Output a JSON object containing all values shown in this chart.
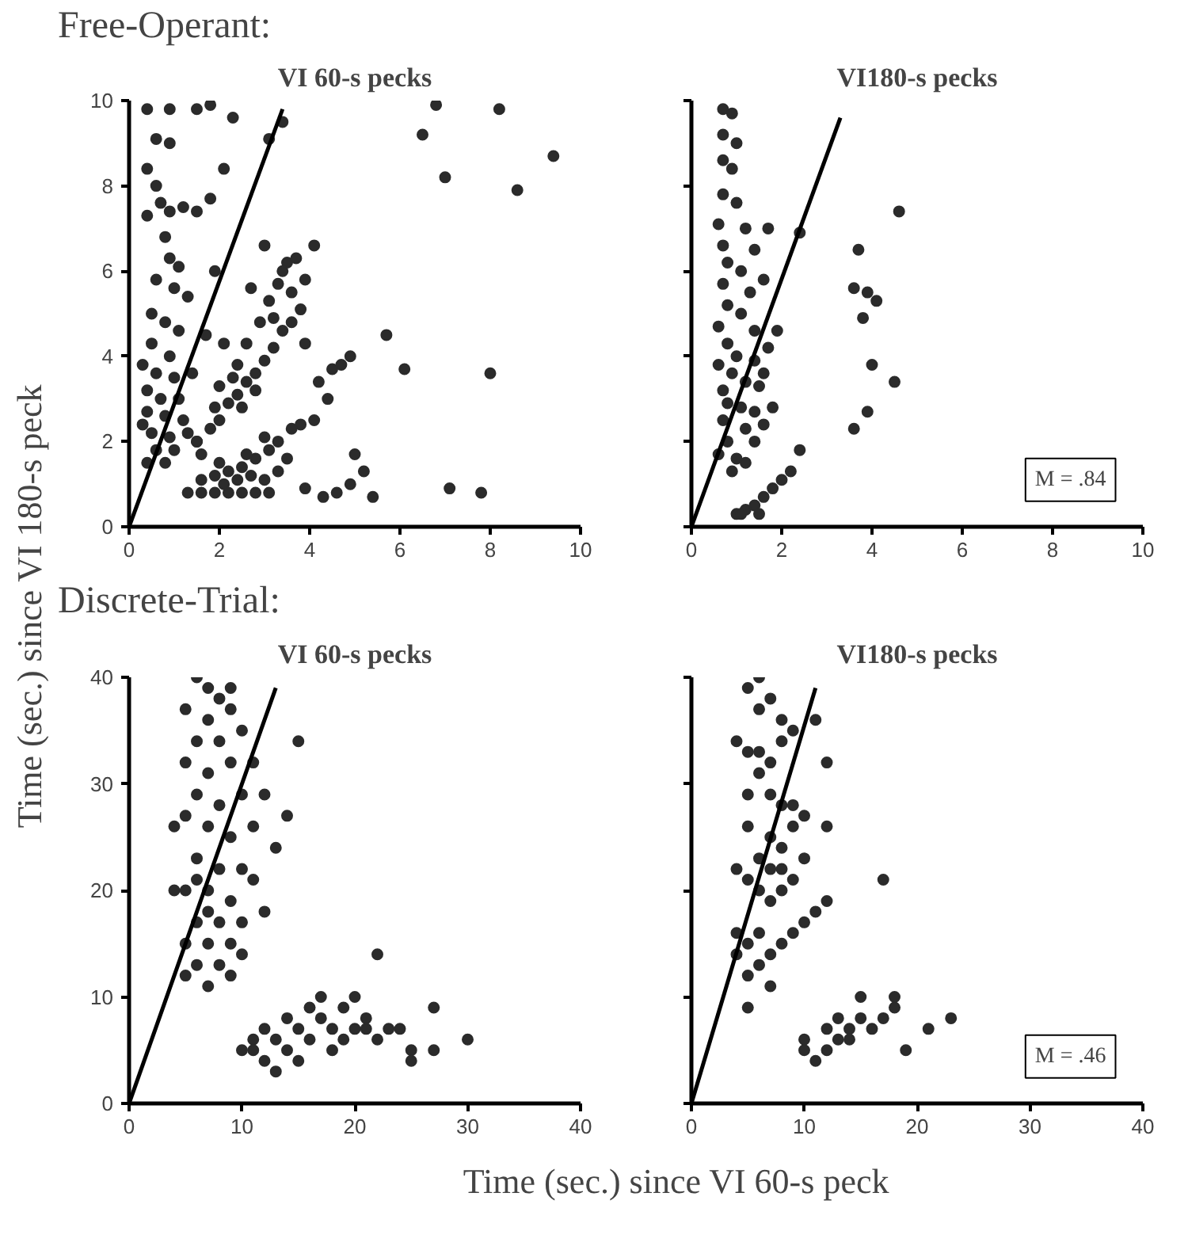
{
  "chart_data": [
    {
      "type": "scatter",
      "title": "VI 60-s pecks",
      "annotations": [
        "Free-Operant:"
      ],
      "ylabel": "Time (sec.) since VI 180-s peck",
      "xlim": [
        0,
        10
      ],
      "ylim": [
        0,
        10
      ],
      "xticks": [
        0,
        2,
        4,
        6,
        8,
        10
      ],
      "yticks": [
        0,
        2,
        4,
        6,
        8,
        10
      ],
      "marker": "circle",
      "series": [
        {
          "color": "#2b2b2b",
          "x": [
            0.4,
            0.9,
            1.5,
            1.8,
            0.6,
            0.9,
            0.4,
            0.6,
            0.7,
            0.4,
            0.9,
            1.2,
            1.5,
            1.8,
            0.8,
            0.9,
            1.1,
            0.6,
            1.0,
            1.3,
            0.5,
            0.8,
            1.1,
            0.5,
            0.9,
            0.3,
            0.6,
            1.0,
            0.4,
            0.7,
            1.1,
            0.4,
            0.8,
            1.2,
            0.5,
            0.9,
            1.3,
            0.6,
            1.0,
            0.4,
            0.8,
            1.5,
            1.6,
            0.3,
            1.4,
            1.7,
            1.9,
            2.1,
            2.3,
            3.4,
            3.1,
            1.5,
            1.8,
            2.0,
            2.2,
            2.4,
            2.6,
            2.8,
            3.0,
            3.2,
            3.4,
            3.6,
            3.8,
            2.4,
            2.6,
            2.9,
            3.1,
            3.3,
            3.5,
            3.0,
            3.4,
            2.1,
            2.0,
            2.7,
            3.9,
            4.1,
            3.7,
            3.2,
            3.6,
            2.3,
            1.9,
            2.5,
            2.8,
            3.9,
            1.3,
            1.6,
            1.9,
            2.2,
            2.5,
            2.8,
            3.1,
            1.6,
            1.9,
            2.2,
            2.5,
            2.8,
            3.1,
            3.3,
            3.6,
            2.1,
            2.4,
            2.7,
            3.0,
            3.3,
            2.6,
            3.0,
            2.0,
            3.5,
            3.8,
            4.1,
            4.4,
            4.2,
            4.7,
            4.9,
            4.5,
            3.9,
            4.3,
            4.6,
            4.9,
            5.2,
            5.4,
            5.0,
            5.7,
            6.1,
            6.8,
            6.5,
            8.2,
            7.0,
            8.6,
            9.4,
            8.0,
            7.8,
            7.1
          ],
          "values": [
            9.8,
            9.8,
            9.8,
            9.9,
            9.1,
            9.0,
            8.4,
            8.0,
            7.6,
            7.3,
            7.4,
            7.5,
            7.4,
            7.7,
            6.8,
            6.3,
            6.1,
            5.8,
            5.6,
            5.4,
            5.0,
            4.8,
            4.6,
            4.3,
            4.0,
            3.8,
            3.6,
            3.5,
            3.2,
            3.0,
            3.0,
            2.7,
            2.6,
            2.5,
            2.2,
            2.1,
            2.2,
            1.8,
            1.8,
            1.5,
            1.5,
            2.0,
            1.7,
            2.4,
            3.6,
            4.5,
            6.0,
            8.4,
            9.6,
            9.5,
            9.1,
            2.0,
            2.3,
            2.5,
            2.9,
            3.1,
            3.4,
            3.6,
            3.9,
            4.2,
            4.6,
            4.8,
            5.1,
            3.8,
            4.3,
            4.8,
            5.3,
            5.7,
            6.2,
            6.6,
            6.0,
            4.3,
            3.3,
            5.6,
            5.8,
            6.6,
            6.3,
            4.9,
            5.5,
            3.5,
            2.8,
            2.8,
            3.2,
            4.3,
            0.8,
            0.8,
            0.8,
            0.8,
            0.8,
            0.8,
            0.8,
            1.1,
            1.2,
            1.3,
            1.4,
            1.6,
            1.8,
            2.0,
            2.3,
            1.0,
            1.1,
            1.2,
            1.1,
            1.3,
            1.7,
            2.1,
            1.5,
            1.6,
            2.4,
            2.5,
            3.0,
            3.4,
            3.8,
            4.0,
            3.7,
            0.9,
            0.7,
            0.8,
            1.0,
            1.3,
            0.7,
            1.7,
            4.5,
            3.7,
            9.9,
            9.2,
            9.8,
            8.2,
            7.9,
            8.7,
            3.6,
            0.8,
            0.9
          ]
        },
        {
          "type": "line",
          "marker": "none",
          "color": "#000000",
          "x": [
            0,
            3.4
          ],
          "values": [
            0,
            9.8
          ]
        }
      ]
    },
    {
      "type": "scatter",
      "title": "VI180-s pecks",
      "annotations": [
        "M = .84"
      ],
      "tick_labels": "x",
      "xlim": [
        0,
        10
      ],
      "ylim": [
        0,
        10
      ],
      "xticks": [
        0,
        2,
        4,
        6,
        8,
        10
      ],
      "yticks": [
        {
          "value": 0,
          "label": null
        },
        {
          "value": 2,
          "label": null
        },
        {
          "value": 4,
          "label": null
        },
        {
          "value": 6,
          "label": null
        },
        {
          "value": 8,
          "label": null
        },
        {
          "value": 10,
          "label": null
        }
      ],
      "marker": "circle",
      "series": [
        {
          "color": "#2b2b2b",
          "x": [
            0.7,
            0.9,
            0.7,
            1.0,
            0.7,
            0.9,
            0.7,
            1.0,
            0.6,
            1.2,
            0.7,
            1.4,
            0.8,
            1.1,
            0.7,
            1.3,
            0.8,
            1.1,
            0.6,
            1.4,
            0.8,
            1.0,
            1.7,
            0.6,
            0.9,
            1.2,
            0.7,
            1.5,
            0.8,
            1.1,
            1.4,
            1.8,
            0.7,
            1.2,
            1.6,
            0.8,
            1.4,
            0.6,
            1.0,
            0.9,
            1.2,
            1.6,
            1.9,
            2.4,
            1.7,
            1.4,
            1.6,
            1.0,
            1.2,
            1.4,
            1.6,
            1.8,
            2.0,
            1.1,
            1.5,
            2.4,
            2.2,
            4.6,
            3.7,
            3.6,
            3.9,
            4.1,
            3.8,
            4.0,
            4.5,
            3.9,
            3.6
          ],
          "values": [
            9.8,
            9.7,
            9.2,
            9.0,
            8.6,
            8.4,
            7.8,
            7.6,
            7.1,
            7.0,
            6.6,
            6.5,
            6.2,
            6.0,
            5.7,
            5.5,
            5.2,
            5.0,
            4.7,
            4.6,
            4.3,
            4.0,
            4.2,
            3.8,
            3.6,
            3.4,
            3.2,
            3.3,
            2.9,
            2.8,
            2.7,
            2.8,
            2.5,
            2.3,
            2.4,
            2.0,
            2.0,
            1.7,
            1.6,
            1.3,
            1.5,
            3.6,
            4.6,
            6.9,
            7.0,
            3.9,
            5.8,
            0.3,
            0.4,
            0.5,
            0.7,
            0.9,
            1.1,
            0.3,
            0.3,
            1.8,
            1.3,
            7.4,
            6.5,
            5.6,
            5.5,
            5.3,
            4.9,
            3.8,
            3.4,
            2.7,
            2.3
          ]
        },
        {
          "type": "line",
          "marker": "none",
          "color": "#000000",
          "x": [
            0,
            3.3
          ],
          "values": [
            0,
            9.6
          ]
        }
      ]
    },
    {
      "type": "scatter",
      "title": "VI 60-s pecks",
      "annotations": [
        "Discrete-Trial:"
      ],
      "xlabel": "Time (sec.) since VI 60-s peck",
      "xlim": [
        0,
        40
      ],
      "ylim": [
        0,
        40
      ],
      "xticks": [
        0,
        10,
        20,
        30,
        40
      ],
      "yticks": [
        0,
        10,
        20,
        30,
        40
      ],
      "marker": "circle",
      "series": [
        {
          "color": "#2b2b2b",
          "x": [
            6,
            7,
            9,
            5,
            7,
            9,
            6,
            8,
            5,
            7,
            9,
            11,
            6,
            8,
            10,
            5,
            7,
            9,
            6,
            8,
            10,
            5,
            7,
            9,
            11,
            6,
            8,
            10,
            12,
            5,
            7,
            9,
            6,
            8,
            5,
            7,
            9,
            4,
            4,
            13,
            14,
            15,
            12,
            11,
            8,
            10,
            6,
            7,
            10,
            10,
            11,
            12,
            12,
            13,
            14,
            14,
            15,
            16,
            16,
            17,
            17,
            18,
            18,
            19,
            20,
            20,
            21,
            22,
            22,
            23,
            24,
            25,
            25,
            27,
            27,
            30,
            13,
            15,
            11,
            19,
            21
          ],
          "values": [
            40,
            39,
            39,
            37,
            36,
            37,
            34,
            34,
            32,
            31,
            32,
            32,
            29,
            28,
            29,
            27,
            26,
            25,
            23,
            22,
            22,
            20,
            20,
            19,
            21,
            17,
            17,
            17,
            18,
            15,
            15,
            15,
            13,
            13,
            12,
            11,
            12,
            20,
            26,
            24,
            27,
            34,
            29,
            26,
            38,
            35,
            21,
            18,
            14,
            5,
            6,
            4,
            7,
            6,
            5,
            8,
            7,
            6,
            9,
            8,
            10,
            7,
            5,
            9,
            7,
            10,
            8,
            6,
            14,
            7,
            7,
            5,
            4,
            9,
            5,
            6,
            3,
            4,
            5,
            6,
            7
          ]
        },
        {
          "type": "line",
          "marker": "none",
          "color": "#000000",
          "x": [
            0,
            13
          ],
          "values": [
            0,
            39
          ]
        }
      ]
    },
    {
      "type": "scatter",
      "title": "VI180-s pecks",
      "annotations": [
        "M = .46"
      ],
      "tick_labels": "x",
      "xlim": [
        0,
        40
      ],
      "ylim": [
        0,
        40
      ],
      "xticks": [
        0,
        10,
        20,
        30,
        40
      ],
      "yticks": [
        {
          "value": 0,
          "label": null
        },
        {
          "value": 10,
          "label": null
        },
        {
          "value": 20,
          "label": null
        },
        {
          "value": 30,
          "label": null
        },
        {
          "value": 40,
          "label": null
        }
      ],
      "marker": "circle",
      "series": [
        {
          "color": "#2b2b2b",
          "x": [
            6,
            5,
            7,
            6,
            8,
            9,
            11,
            4,
            5,
            6,
            7,
            8,
            12,
            6,
            5,
            7,
            8,
            9,
            10,
            5,
            7,
            8,
            9,
            6,
            7,
            8,
            10,
            12,
            17,
            4,
            5,
            6,
            7,
            8,
            9,
            11,
            12,
            4,
            5,
            6,
            7,
            8,
            9,
            10,
            4,
            5,
            6,
            7,
            5,
            10,
            10,
            11,
            12,
            12,
            13,
            13,
            14,
            14,
            15,
            15,
            16,
            17,
            18,
            18,
            19,
            21,
            23
          ],
          "values": [
            40,
            39,
            38,
            37,
            36,
            35,
            36,
            34,
            33,
            33,
            32,
            34,
            32,
            31,
            29,
            29,
            28,
            28,
            27,
            26,
            25,
            24,
            26,
            23,
            22,
            22,
            23,
            26,
            21,
            22,
            21,
            20,
            19,
            20,
            21,
            18,
            19,
            16,
            15,
            16,
            14,
            15,
            16,
            17,
            14,
            12,
            13,
            11,
            9,
            5,
            6,
            4,
            5,
            7,
            6,
            8,
            6,
            7,
            8,
            10,
            7,
            8,
            9,
            10,
            5,
            7,
            8
          ]
        },
        {
          "type": "line",
          "marker": "none",
          "color": "#000000",
          "x": [
            0,
            11
          ],
          "values": [
            0,
            39
          ]
        }
      ]
    }
  ]
}
